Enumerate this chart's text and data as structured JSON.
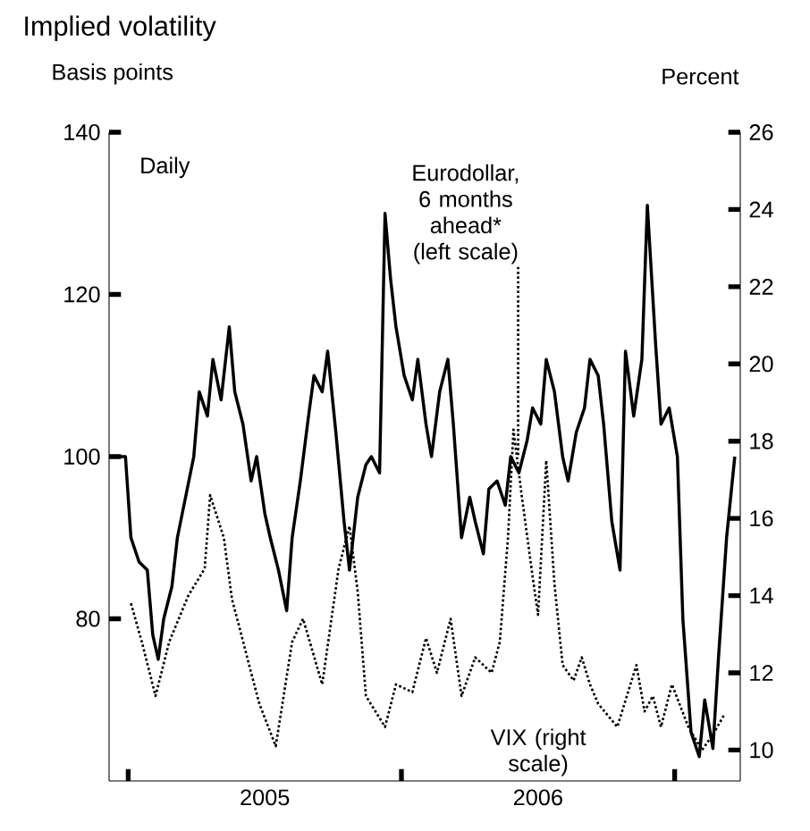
{
  "chart_data": {
    "type": "line",
    "title": "Implied volatility",
    "ylabel": "Basis points",
    "y2label": "Percent",
    "annotations": [
      "Daily"
    ],
    "xlim": [
      2004.93,
      2007.24
    ],
    "xticks": [
      {
        "value": 2005,
        "label": null
      },
      {
        "value": 2005.5,
        "label": "2005"
      },
      {
        "value": 2006,
        "label": null
      },
      {
        "value": 2006.5,
        "label": "2006"
      },
      {
        "value": 2007,
        "label": null
      }
    ],
    "ylim": [
      60,
      140
    ],
    "yticks": [
      80,
      100,
      120,
      140
    ],
    "y2lim": [
      9.2,
      26
    ],
    "y2ticks": [
      10,
      12,
      14,
      16,
      18,
      20,
      22,
      24,
      26
    ],
    "marker": "none",
    "series": [
      {
        "name": "Eurodollar, 6 months ahead* (left scale)",
        "color": "#000000",
        "line_style": "solid",
        "x": [
          2004.93,
          2004.99,
          2005.01,
          2005.04,
          2005.07,
          2005.09,
          2005.11,
          2005.13,
          2005.16,
          2005.18,
          2005.21,
          2005.24,
          2005.26,
          2005.29,
          2005.31,
          2005.34,
          2005.37,
          2005.39,
          2005.42,
          2005.45,
          2005.47,
          2005.5,
          2005.52,
          2005.55,
          2005.58,
          2005.6,
          2005.63,
          2005.66,
          2005.68,
          2005.71,
          2005.73,
          2005.76,
          2005.79,
          2005.81,
          2005.84,
          2005.87,
          2005.89,
          2005.92,
          2005.94,
          2005.96,
          2005.98,
          2006.01,
          2006.04,
          2006.06,
          2006.09,
          2006.11,
          2006.14,
          2006.17,
          2006.19,
          2006.22,
          2006.25,
          2006.27,
          2006.3,
          2006.32,
          2006.35,
          2006.38,
          2006.4,
          2006.43,
          2006.46,
          2006.48,
          2006.51,
          2006.53,
          2006.56,
          2006.59,
          2006.61,
          2006.64,
          2006.67,
          2006.69,
          2006.72,
          2006.74,
          2006.77,
          2006.8,
          2006.82,
          2006.85,
          2006.88,
          2006.9,
          2006.93,
          2006.95,
          2006.98,
          2007.01,
          2007.03,
          2007.06,
          2007.09,
          2007.11,
          2007.14,
          2007.16,
          2007.19,
          2007.22
        ],
        "values": [
          100,
          100,
          90,
          87,
          86,
          78,
          75,
          80,
          84,
          90,
          95,
          100,
          108,
          105,
          112,
          107,
          116,
          108,
          104,
          97,
          100,
          93,
          90,
          86,
          81,
          90,
          97,
          105,
          110,
          108,
          113,
          103,
          92,
          86,
          95,
          99,
          100,
          98,
          130,
          122,
          116,
          110,
          107,
          112,
          104,
          100,
          108,
          112,
          104,
          90,
          95,
          92,
          88,
          96,
          97,
          94,
          100,
          98,
          102,
          106,
          104,
          112,
          108,
          100,
          97,
          103,
          106,
          112,
          110,
          104,
          92,
          86,
          113,
          105,
          112,
          131,
          114,
          104,
          106,
          100,
          80,
          66,
          63,
          70,
          64,
          75,
          90,
          100
        ]
      },
      {
        "name": "VIX (right scale)",
        "color": "#000000",
        "line_style": "dotted",
        "axis": "y2",
        "x": [
          2005.01,
          2005.05,
          2005.1,
          2005.15,
          2005.22,
          2005.28,
          2005.3,
          2005.35,
          2005.38,
          2005.41,
          2005.45,
          2005.48,
          2005.54,
          2005.6,
          2005.64,
          2005.71,
          2005.77,
          2005.81,
          2005.84,
          2005.87,
          2005.94,
          2005.98,
          2006.04,
          2006.09,
          2006.13,
          2006.18,
          2006.22,
          2006.27,
          2006.33,
          2006.36,
          2006.39,
          2006.41,
          2006.44,
          2006.48,
          2006.5,
          2006.53,
          2006.56,
          2006.59,
          2006.63,
          2006.66,
          2006.69,
          2006.72,
          2006.79,
          2006.86,
          2006.89,
          2006.92,
          2006.95,
          2006.99,
          2007.05,
          2007.1,
          2007.14,
          2007.18
        ],
        "values": [
          13.8,
          12.8,
          11.4,
          12.8,
          14,
          14.7,
          16.6,
          15.5,
          13.9,
          13.1,
          12,
          11.2,
          10.1,
          12.8,
          13.4,
          11.7,
          14.7,
          15.8,
          14.1,
          11.4,
          10.6,
          11.7,
          11.5,
          12.9,
          12,
          13.4,
          11.4,
          12.4,
          12,
          12.8,
          15.5,
          18.3,
          16.6,
          14.5,
          13.5,
          17.5,
          14.3,
          12.2,
          11.8,
          12.4,
          11.7,
          11.2,
          10.6,
          12.2,
          11,
          11.4,
          10.6,
          11.7,
          10.6,
          10,
          10.4,
          10.9
        ]
      }
    ]
  }
}
